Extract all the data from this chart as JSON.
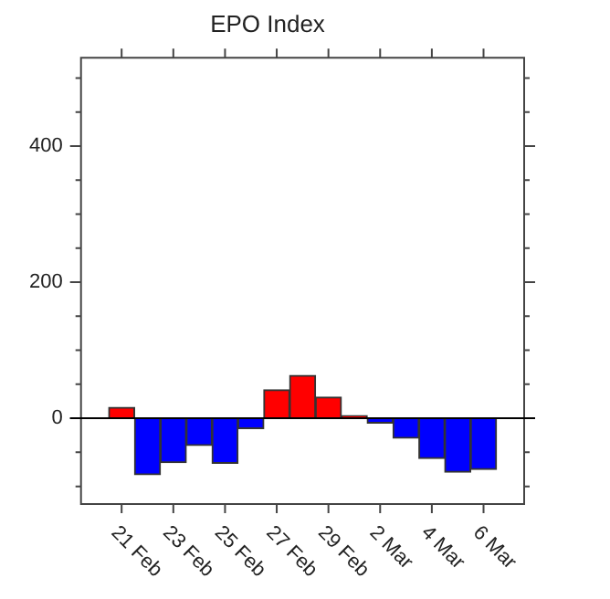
{
  "chart_data": {
    "type": "bar",
    "title": "EPO Index",
    "categories": [
      "21 Feb",
      null,
      "23 Feb",
      null,
      "25 Feb",
      null,
      "27 Feb",
      null,
      "29 Feb",
      null,
      "2 Mar",
      null,
      "4 Mar",
      null,
      "6 Mar"
    ],
    "values": [
      16,
      -83,
      -65,
      -40,
      -66,
      -15,
      42,
      63,
      31,
      4,
      -7,
      -29,
      -59,
      -79,
      -75
    ],
    "colors": [
      "#ff0000",
      "#0000ff",
      "#0000ff",
      "#0000ff",
      "#0000ff",
      "#0000ff",
      "#ff0000",
      "#ff0000",
      "#ff0000",
      "#ff0000",
      "#0000ff",
      "#0000ff",
      "#0000ff",
      "#0000ff",
      "#0000ff"
    ],
    "ylim": [
      -126,
      530
    ],
    "yticks": [
      {
        "value": -100,
        "label": null
      },
      {
        "value": -50,
        "label": null
      },
      0,
      {
        "value": 50,
        "label": null
      },
      {
        "value": 100,
        "label": null
      },
      {
        "value": 150,
        "label": null
      },
      200,
      {
        "value": 250,
        "label": null
      },
      {
        "value": 300,
        "label": null
      },
      {
        "value": 350,
        "label": null
      },
      400,
      {
        "value": 450,
        "label": null
      },
      {
        "value": 500,
        "label": null
      }
    ],
    "ref_lines": [
      {
        "axis": "y",
        "value": 0,
        "color": "#000000"
      }
    ],
    "grid": false,
    "legend": false
  }
}
